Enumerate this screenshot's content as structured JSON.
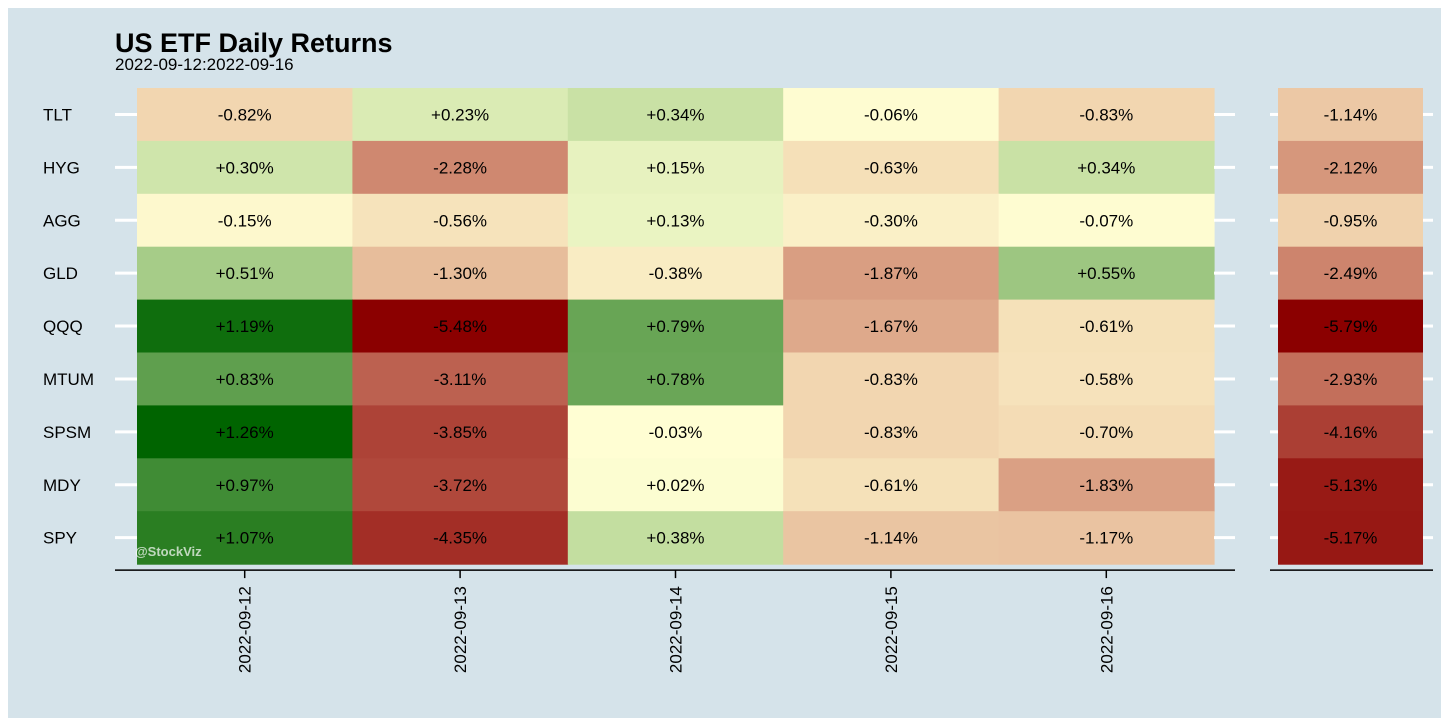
{
  "chart_data": {
    "type": "heatmap",
    "title": "US ETF Daily Returns",
    "subtitle": "2022-09-12:2022-09-16",
    "rows": [
      "TLT",
      "HYG",
      "AGG",
      "GLD",
      "QQQ",
      "MTUM",
      "SPSM",
      "MDY",
      "SPY"
    ],
    "columns": [
      "2022-09-12",
      "2022-09-13",
      "2022-09-14",
      "2022-09-15",
      "2022-09-16"
    ],
    "values": [
      [
        -0.82,
        0.23,
        0.34,
        -0.06,
        -0.83
      ],
      [
        0.3,
        -2.28,
        0.15,
        -0.63,
        0.34
      ],
      [
        -0.15,
        -0.56,
        0.13,
        -0.3,
        -0.07
      ],
      [
        0.51,
        -1.3,
        -0.38,
        -1.87,
        0.55
      ],
      [
        1.19,
        -5.48,
        0.79,
        -1.67,
        -0.61
      ],
      [
        0.83,
        -3.11,
        0.78,
        -0.83,
        -0.58
      ],
      [
        1.26,
        -3.85,
        -0.03,
        -0.83,
        -0.7
      ],
      [
        0.97,
        -3.72,
        0.02,
        -0.61,
        -1.83
      ],
      [
        1.07,
        -4.35,
        0.38,
        -1.14,
        -1.17
      ]
    ],
    "labels": [
      [
        "-0.82%",
        "+0.23%",
        "+0.34%",
        "-0.06%",
        "-0.83%"
      ],
      [
        "+0.30%",
        "-2.28%",
        "+0.15%",
        "-0.63%",
        "+0.34%"
      ],
      [
        "-0.15%",
        "-0.56%",
        "+0.13%",
        "-0.30%",
        "-0.07%"
      ],
      [
        "+0.51%",
        "-1.30%",
        "-0.38%",
        "-1.87%",
        "+0.55%"
      ],
      [
        "+1.19%",
        "-5.48%",
        "+0.79%",
        "-1.67%",
        "-0.61%"
      ],
      [
        "+0.83%",
        "-3.11%",
        "+0.78%",
        "-0.83%",
        "-0.58%"
      ],
      [
        "+1.26%",
        "-3.85%",
        "-0.03%",
        "-0.83%",
        "-0.70%"
      ],
      [
        "+0.97%",
        "-3.72%",
        "+0.02%",
        "-0.61%",
        "-1.83%"
      ],
      [
        "+1.07%",
        "-4.35%",
        "+0.38%",
        "-1.14%",
        "-1.17%"
      ]
    ],
    "totals": [
      -1.14,
      -2.12,
      -0.95,
      -2.49,
      -5.79,
      -2.93,
      -4.16,
      -5.13,
      -5.17
    ],
    "total_labels": [
      "-1.14%",
      "-2.12%",
      "-0.95%",
      "-2.49%",
      "-5.79%",
      "-2.93%",
      "-4.16%",
      "-5.13%",
      "-5.17%"
    ],
    "watermark": "@StockViz",
    "colors": {
      "background": "#d5e3ea",
      "negative_max": "#8b0000",
      "neutral": "#ffffd4",
      "positive_max": "#006400"
    }
  }
}
